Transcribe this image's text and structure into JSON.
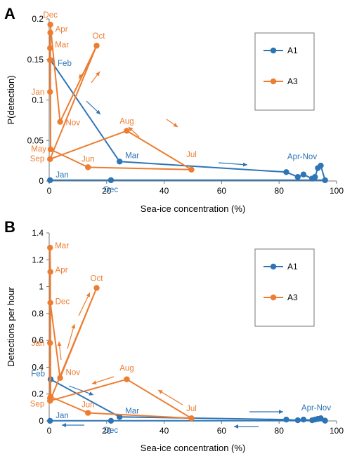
{
  "chart_data": [
    {
      "panel_label": "A",
      "type": "line",
      "xlabel": "Sea-ice concentration (%)",
      "ylabel": "P(detection)",
      "xlim": [
        0,
        100
      ],
      "ylim": [
        0,
        0.2
      ],
      "xticks": [
        0,
        20,
        40,
        60,
        80,
        100
      ],
      "yticks": [
        0,
        0.05,
        0.1,
        0.15,
        0.2
      ],
      "ytick_labels": [
        "0",
        "0.05",
        "0.1",
        "0.15",
        "0.2"
      ],
      "grid": false,
      "legend_position": "top-right",
      "series": [
        {
          "name": "A1",
          "color": "#2E75B6",
          "points": [
            {
              "x": 0.5,
              "y": 0.149,
              "label": "Feb"
            },
            {
              "x": 24.5,
              "y": 0.024,
              "label": "Mar"
            },
            {
              "x": 82.5,
              "y": 0.011
            },
            {
              "x": 86.5,
              "y": 0.005
            },
            {
              "x": 88.5,
              "y": 0.008
            },
            {
              "x": 91.5,
              "y": 0.003
            },
            {
              "x": 92.5,
              "y": 0.005
            },
            {
              "x": 93.5,
              "y": 0.016
            },
            {
              "x": 94.5,
              "y": 0.019
            },
            {
              "x": 96.0,
              "y": 0.001
            },
            {
              "x": 21.5,
              "y": 0.001,
              "label": "Dec"
            },
            {
              "x": 0.3,
              "y": 0.001,
              "label": "Jan"
            }
          ]
        },
        {
          "name": "A3",
          "color": "#ED7D31",
          "points": [
            {
              "x": 0.3,
              "y": 0.11,
              "label": "Jan"
            },
            {
              "x": 0.3,
              "y": 0.149
            },
            {
              "x": 0.3,
              "y": 0.164,
              "label": "Mar"
            },
            {
              "x": 0.4,
              "y": 0.183,
              "label": "Apr"
            },
            {
              "x": 0.5,
              "y": 0.039,
              "label": "May"
            },
            {
              "x": 13.5,
              "y": 0.017,
              "label": "Jun"
            },
            {
              "x": 49.5,
              "y": 0.014,
              "label": "Jul"
            },
            {
              "x": 27.0,
              "y": 0.062,
              "label": "Aug"
            },
            {
              "x": 0.3,
              "y": 0.027,
              "label": "Sep"
            },
            {
              "x": 16.5,
              "y": 0.167,
              "label": "Oct"
            },
            {
              "x": 3.8,
              "y": 0.073,
              "label": "Nov"
            },
            {
              "x": 0.4,
              "y": 0.193,
              "label": "Dec"
            }
          ]
        }
      ],
      "annotations": [
        {
          "text": "Apr-Nov",
          "color": "#2E75B6"
        }
      ]
    },
    {
      "panel_label": "B",
      "type": "line",
      "xlabel": "Sea-ice concentration (%)",
      "ylabel": "Detections per hour",
      "xlim": [
        0,
        100
      ],
      "ylim": [
        0,
        1.4
      ],
      "xticks": [
        0,
        20,
        40,
        60,
        80,
        100
      ],
      "yticks": [
        0,
        0.2,
        0.4,
        0.6,
        0.8,
        1,
        1.2,
        1.4
      ],
      "ytick_labels": [
        "0",
        "0.2",
        "0.4",
        "0.6",
        "0.8",
        "1",
        "1.2",
        "1.4"
      ],
      "grid": false,
      "legend_position": "top-right",
      "series": [
        {
          "name": "A1",
          "color": "#2E75B6",
          "points": [
            {
              "x": 0.5,
              "y": 0.31,
              "label": "Feb"
            },
            {
              "x": 24.5,
              "y": 0.03,
              "label": "Mar"
            },
            {
              "x": 82.5,
              "y": 0.01
            },
            {
              "x": 86.5,
              "y": 0.005
            },
            {
              "x": 88.5,
              "y": 0.01
            },
            {
              "x": 91.5,
              "y": 0.005
            },
            {
              "x": 92.5,
              "y": 0.01
            },
            {
              "x": 93.5,
              "y": 0.015
            },
            {
              "x": 94.5,
              "y": 0.02
            },
            {
              "x": 96.0,
              "y": 0.002
            },
            {
              "x": 21.5,
              "y": 0.001,
              "label": "Dec"
            },
            {
              "x": 0.3,
              "y": 0.001,
              "label": "Jan"
            }
          ]
        },
        {
          "name": "A3",
          "color": "#ED7D31",
          "points": [
            {
              "x": 0.3,
              "y": 0.58,
              "label": "Jan"
            },
            {
              "x": 0.3,
              "y": 0.17
            },
            {
              "x": 0.3,
              "y": 1.29,
              "label": "Mar"
            },
            {
              "x": 0.4,
              "y": 1.11,
              "label": "Apr"
            },
            {
              "x": 0.5,
              "y": 0.18
            },
            {
              "x": 13.5,
              "y": 0.06,
              "label": "Jun"
            },
            {
              "x": 49.5,
              "y": 0.02,
              "label": "Jul"
            },
            {
              "x": 27.0,
              "y": 0.31,
              "label": "Aug"
            },
            {
              "x": 0.3,
              "y": 0.15,
              "label": "Sep"
            },
            {
              "x": 16.5,
              "y": 0.99,
              "label": "Oct"
            },
            {
              "x": 3.8,
              "y": 0.32,
              "label": "Nov"
            },
            {
              "x": 0.4,
              "y": 0.88,
              "label": "Dec"
            }
          ]
        }
      ],
      "annotations": [
        {
          "text": "Apr-Nov",
          "color": "#2E75B6"
        }
      ]
    }
  ]
}
